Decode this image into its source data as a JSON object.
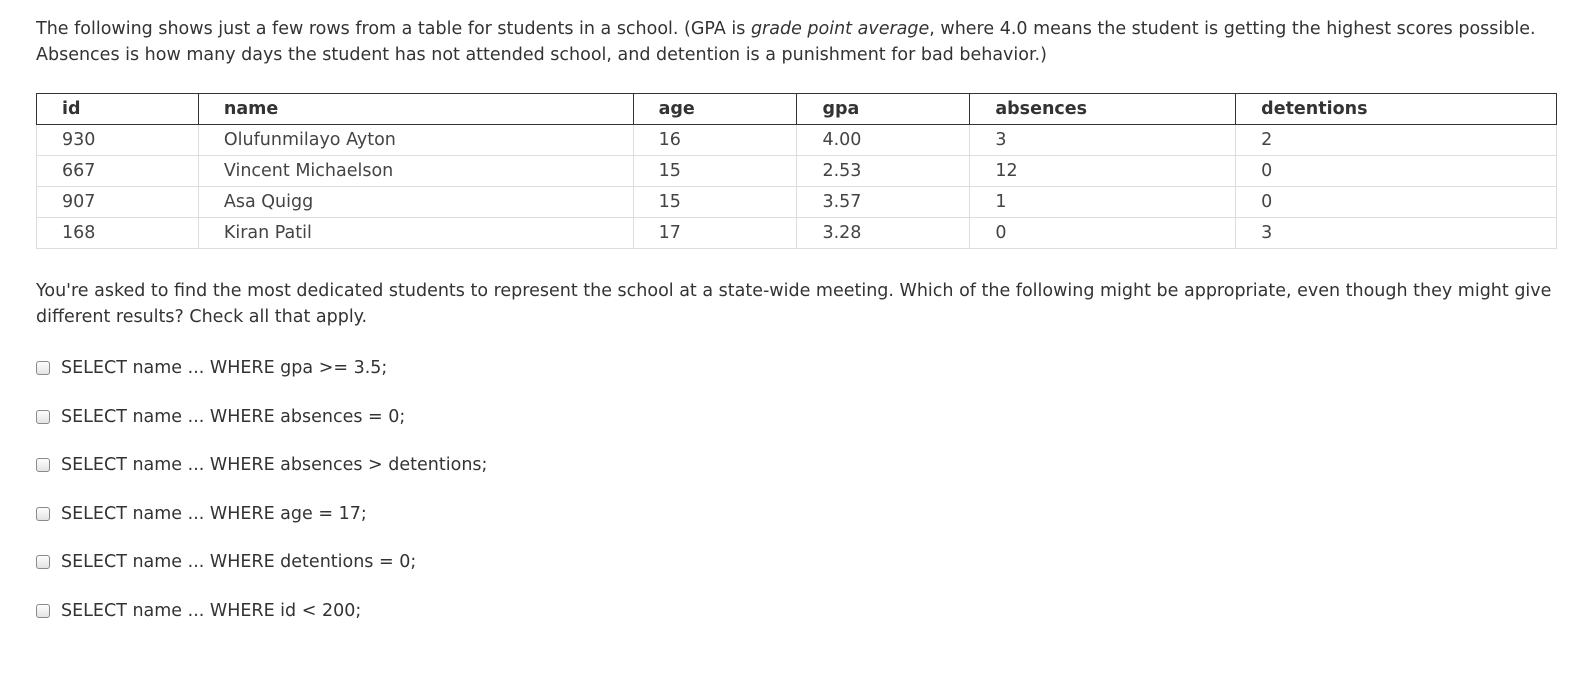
{
  "intro": {
    "part1": "The following shows just a few rows from a table for students in a school. (GPA is ",
    "gpa_term": "grade point average",
    "part2": ", where 4.0 means the student is getting the highest scores possible. Absences is how many days the student has not attended school, and detention is a punishment for bad behavior.)"
  },
  "table": {
    "headers": [
      "id",
      "name",
      "age",
      "gpa",
      "absences",
      "detentions"
    ],
    "rows": [
      [
        "930",
        "Olufunmilayo Ayton",
        "16",
        "4.00",
        "3",
        "2"
      ],
      [
        "667",
        "Vincent Michaelson",
        "15",
        "2.53",
        "12",
        "0"
      ],
      [
        "907",
        "Asa Quigg",
        "15",
        "3.57",
        "1",
        "0"
      ],
      [
        "168",
        "Kiran Patil",
        "17",
        "3.28",
        "0",
        "3"
      ]
    ]
  },
  "question": "You're asked to find the most dedicated students to represent the school at a state-wide meeting. Which of the following might be appropriate, even though they might give different results? Check all that apply.",
  "options": [
    {
      "label": "SELECT name ... WHERE gpa >= 3.5;",
      "checked": false
    },
    {
      "label": "SELECT name ... WHERE absences = 0;",
      "checked": false
    },
    {
      "label": "SELECT name ... WHERE absences > detentions;",
      "checked": false
    },
    {
      "label": "SELECT name ... WHERE age = 17;",
      "checked": false
    },
    {
      "label": "SELECT name ... WHERE detentions = 0;",
      "checked": false
    },
    {
      "label": "SELECT name ... WHERE id < 200;",
      "checked": false
    }
  ]
}
